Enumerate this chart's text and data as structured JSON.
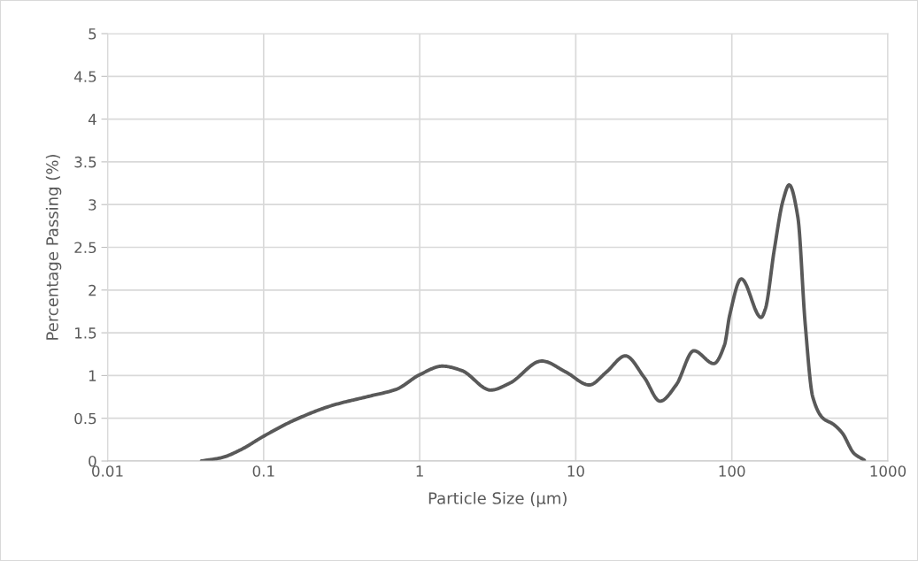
{
  "chart_data": {
    "type": "line",
    "xlabel": "Particle Size (µm)",
    "ylabel": "Percentage Passing (%)",
    "log": "x",
    "xlim": [
      0.01,
      1000
    ],
    "xticks": [
      0.01,
      0.1,
      1,
      10,
      100,
      1000
    ],
    "ylim": [
      0,
      5
    ],
    "yticks": [
      0,
      0.5,
      1,
      1.5,
      2,
      2.5,
      3,
      3.5,
      4,
      4.5,
      5
    ],
    "grid": true,
    "marker": "none",
    "line_style": "solid",
    "series": [
      {
        "color": "#595959",
        "x": [
          0.04,
          0.054,
          0.071,
          0.1,
          0.158,
          0.275,
          0.48,
          0.71,
          1.0,
          1.4,
          1.85,
          2.85,
          3.77,
          6.05,
          8.66,
          12.2,
          15.7,
          20.8,
          27.4,
          34.7,
          44.0,
          57.1,
          76.6,
          89.8,
          97,
          115,
          154,
          164,
          187,
          213,
          233,
          265,
          295,
          330,
          384,
          447,
          509,
          606,
          706
        ],
        "values": [
          0,
          0.04,
          0.13,
          0.29,
          0.48,
          0.65,
          0.76,
          0.84,
          1.01,
          1.11,
          1.06,
          0.83,
          0.91,
          1.17,
          1.04,
          0.89,
          1.04,
          1.23,
          0.98,
          0.7,
          0.89,
          1.29,
          1.14,
          1.36,
          1.71,
          2.13,
          1.68,
          1.78,
          2.47,
          3.05,
          3.23,
          2.85,
          1.61,
          0.75,
          0.5,
          0.43,
          0.33,
          0.09,
          0.01
        ]
      }
    ]
  }
}
